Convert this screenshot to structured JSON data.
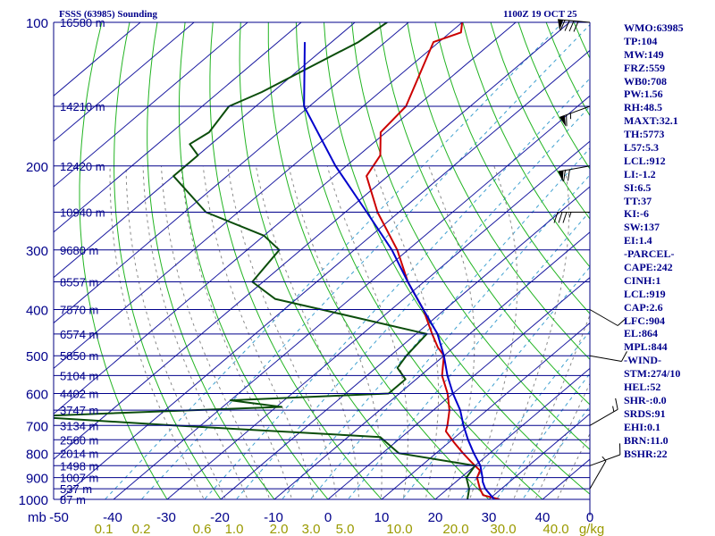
{
  "header": {
    "title": "FSSS (63985) Sounding",
    "datetime": "1100Z 19 OCT 25"
  },
  "indices": [
    "WMO:63985",
    "TP:104",
    "MW:149",
    "FRZ:559",
    "WB0:708",
    "PW:1.56",
    "RH:48.5",
    "MAXT:32.1",
    "TH:5773",
    "L57:5.3",
    "LCL:912",
    "LI:-1.2",
    "SI:6.5",
    "TT:37",
    "KI:-6",
    "SW:137",
    "EI:1.4",
    "-PARCEL-",
    "CAPE:242",
    "CINH:1",
    "LCL:919",
    "CAP:2.6",
    "LFC:904",
    "EL:864",
    "MPL:844",
    "-WIND-",
    "STM:274/10",
    "HEL:52",
    "SHR-:0.0",
    "SRDS:91",
    "EHI:0.1",
    "BRN:11.0",
    "BSHR:22"
  ],
  "colors": {
    "isobar": "#00008b",
    "isotherm": "#1a1aa0",
    "dry_adiabat": "#22b422",
    "moist_adiabat": "#8a8a8a",
    "mixing_ratio": "#3fa0d0",
    "temperature": "#cc0000",
    "dewpoint": "#0b4d0b",
    "parcel": "#0000cc",
    "label_text": "#00008b",
    "mixing_label": "#9a9a00"
  },
  "chart_data": {
    "type": "line",
    "xlabel": "mb",
    "ylabel": "",
    "x_tick_labels": [
      "-50",
      "-40",
      "-30",
      "-20",
      "-10",
      "0",
      "10",
      "20",
      "30",
      "40",
      "0"
    ],
    "pressure_ticks": [
      100,
      200,
      300,
      400,
      500,
      600,
      700,
      800,
      900,
      1000
    ],
    "mixing_ratio_labels": [
      "0.1",
      "0.2",
      "0.6",
      "1.0",
      "2.0",
      "3.0",
      "5.0",
      "10.0",
      "20.0",
      "30.0",
      "40.0",
      "g/kg"
    ],
    "height_labels": [
      {
        "p": 100,
        "label": "16580 m"
      },
      {
        "p": 150,
        "label": "14210 m"
      },
      {
        "p": 200,
        "label": "12420 m"
      },
      {
        "p": 250,
        "label": "10940 m"
      },
      {
        "p": 300,
        "label": "9680 m"
      },
      {
        "p": 350,
        "label": "8557 m"
      },
      {
        "p": 400,
        "label": "7570 m"
      },
      {
        "p": 450,
        "label": "6574 m"
      },
      {
        "p": 500,
        "label": "5850 m"
      },
      {
        "p": 550,
        "label": "5104 m"
      },
      {
        "p": 600,
        "label": "4402 m"
      },
      {
        "p": 650,
        "label": "3747 m"
      },
      {
        "p": 700,
        "label": "3134 m"
      },
      {
        "p": 750,
        "label": "2560 m"
      },
      {
        "p": 800,
        "label": "2014 m"
      },
      {
        "p": 850,
        "label": "1498 m"
      },
      {
        "p": 900,
        "label": "1007 m"
      },
      {
        "p": 950,
        "label": "537 m"
      },
      {
        "p": 1000,
        "label": "87 m"
      }
    ],
    "series": [
      {
        "key": "temperature",
        "points": [
          [
            100,
            -80
          ],
          [
            105,
            -78
          ],
          [
            110,
            -81
          ],
          [
            150,
            -72
          ],
          [
            170,
            -71
          ],
          [
            190,
            -66
          ],
          [
            210,
            -64
          ],
          [
            250,
            -54
          ],
          [
            300,
            -42
          ],
          [
            350,
            -33
          ],
          [
            400,
            -24
          ],
          [
            450,
            -17
          ],
          [
            480,
            -13
          ],
          [
            500,
            -10
          ],
          [
            550,
            -6
          ],
          [
            600,
            -1
          ],
          [
            650,
            3
          ],
          [
            700,
            6
          ],
          [
            720,
            7
          ],
          [
            760,
            11
          ],
          [
            800,
            15
          ],
          [
            830,
            18
          ],
          [
            850,
            20
          ],
          [
            870,
            22
          ],
          [
            900,
            23
          ],
          [
            950,
            26
          ],
          [
            980,
            28
          ],
          [
            1000,
            32
          ]
        ]
      },
      {
        "key": "dewpoint",
        "points": [
          [
            100,
            -94
          ],
          [
            110,
            -95
          ],
          [
            140,
            -102
          ],
          [
            150,
            -105
          ],
          [
            170,
            -103
          ],
          [
            180,
            -104
          ],
          [
            190,
            -100
          ],
          [
            210,
            -100
          ],
          [
            250,
            -86
          ],
          [
            280,
            -70
          ],
          [
            300,
            -64
          ],
          [
            350,
            -62
          ],
          [
            380,
            -54
          ],
          [
            400,
            -43
          ],
          [
            450,
            -18
          ],
          [
            500,
            -17
          ],
          [
            530,
            -16
          ],
          [
            560,
            -12
          ],
          [
            600,
            -12
          ],
          [
            620,
            -40
          ],
          [
            640,
            -29
          ],
          [
            670,
            -74
          ],
          [
            700,
            -45
          ],
          [
            740,
            -4
          ],
          [
            800,
            3
          ],
          [
            850,
            20
          ],
          [
            900,
            21
          ],
          [
            950,
            24
          ],
          [
            1000,
            26
          ]
        ]
      },
      {
        "key": "parcel",
        "points": [
          [
            110,
            -105
          ],
          [
            150,
            -91
          ],
          [
            200,
            -72
          ],
          [
            250,
            -56
          ],
          [
            300,
            -43
          ],
          [
            350,
            -33
          ],
          [
            400,
            -24
          ],
          [
            450,
            -16
          ],
          [
            500,
            -10
          ],
          [
            550,
            -5
          ],
          [
            600,
            0
          ],
          [
            650,
            5
          ],
          [
            700,
            9
          ],
          [
            750,
            13
          ],
          [
            800,
            17
          ],
          [
            850,
            21
          ],
          [
            900,
            24
          ],
          [
            919,
            25
          ],
          [
            950,
            27
          ],
          [
            1000,
            31
          ]
        ]
      }
    ],
    "wind_barbs": [
      {
        "p": 100,
        "speed": 90,
        "dir_deg": 275
      },
      {
        "p": 150,
        "speed": 65,
        "dir_deg": 250
      },
      {
        "p": 200,
        "speed": 70,
        "dir_deg": 260
      },
      {
        "p": 250,
        "speed": 35,
        "dir_deg": 270
      },
      {
        "p": 400,
        "speed": 10,
        "dir_deg": 120
      },
      {
        "p": 500,
        "speed": 10,
        "dir_deg": 100
      },
      {
        "p": 700,
        "speed": 15,
        "dir_deg": 60
      },
      {
        "p": 850,
        "speed": 10,
        "dir_deg": 70
      },
      {
        "p": 950,
        "speed": 5,
        "dir_deg": 30
      }
    ]
  }
}
